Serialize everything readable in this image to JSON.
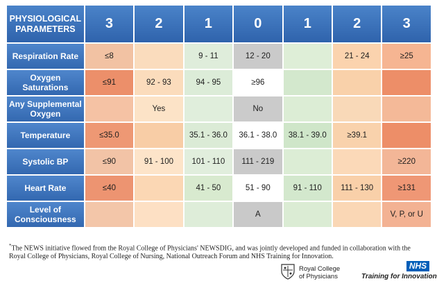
{
  "header": {
    "parameter_label": "PHYSIOLOGICAL PARAMETERS",
    "scores": [
      "3",
      "2",
      "1",
      "0",
      "1",
      "2",
      "3"
    ]
  },
  "rows": [
    {
      "label": "Respiration Rate",
      "cells": [
        "≤8",
        "",
        "9 - 11",
        "12 - 20",
        "",
        "21 - 24",
        "≥25"
      ]
    },
    {
      "label": "Oxygen Saturations",
      "cells": [
        "≤91",
        "92 - 93",
        "94 - 95",
        "≥96",
        "",
        "",
        ""
      ]
    },
    {
      "label": "Any Supplemental Oxygen",
      "cells": [
        "",
        "Yes",
        "",
        "No",
        "",
        "",
        ""
      ]
    },
    {
      "label": "Temperature",
      "cells": [
        "≤35.0",
        "",
        "35.1 - 36.0",
        "36.1 - 38.0",
        "38.1 - 39.0",
        "≥39.1",
        ""
      ]
    },
    {
      "label": "Systolic BP",
      "cells": [
        "≤90",
        "91 - 100",
        "101 - 110",
        "111 - 219",
        "",
        "",
        "≥220"
      ]
    },
    {
      "label": "Heart Rate",
      "cells": [
        "≤40",
        "",
        "41 - 50",
        "51 - 90",
        "91 - 110",
        "111 - 130",
        "≥131"
      ]
    },
    {
      "label": "Level of Consciousness",
      "cells": [
        "",
        "",
        "",
        "A",
        "",
        "",
        "V, P, or U"
      ]
    }
  ],
  "colors": {
    "header_blue": "#3a71b9",
    "row_shades": [
      [
        "#f2c2a3",
        "#fadcbd",
        "#dfeddb",
        "#cacaca",
        "#deeed7",
        "#fbd3ae",
        "#f6b592"
      ],
      [
        "#ec8f6a",
        "#fbdcbc",
        "#dcecd8",
        "#ffffff",
        "#d3e8cd",
        "#f9d1aa",
        "#ed8e68"
      ],
      [
        "#f5c2a4",
        "#fce3c7",
        "#e0eedc",
        "#cbcbcb",
        "#dcedd5",
        "#f9d9b8",
        "#f4b998"
      ],
      [
        "#ee9874",
        "#f8cda6",
        "#dbebd6",
        "#ffffff",
        "#cfe6c9",
        "#f9d2ac",
        "#ed8e68"
      ],
      [
        "#f2c3a6",
        "#fde4c9",
        "#e1eedd",
        "#cacaca",
        "#dcedd5",
        "#fbd9b8",
        "#f3b697"
      ],
      [
        "#ed9471",
        "#fbd7b4",
        "#d8eacf",
        "#ffffff",
        "#d3e8cd",
        "#f9d0a9",
        "#ef9775"
      ],
      [
        "#f3c6a9",
        "#fde0c4",
        "#deedd9",
        "#c9c9c9",
        "#dbecd4",
        "#fad7b5",
        "#f3b293"
      ]
    ]
  },
  "footnote": {
    "marker": "*",
    "text": "The NEWS initiative flowed from the Royal College of Physicians' NEWSDIG, and was jointly developed and funded in collaboration with the Royal College of Physicians, Royal College of Nursing, National Outreach Forum and NHS Training for Innovation."
  },
  "logos": {
    "rcp_line1": "Royal College",
    "rcp_line2": "of Physicians",
    "nhs_mark": "NHS",
    "nhs_tagline": "Training for Innovation"
  }
}
